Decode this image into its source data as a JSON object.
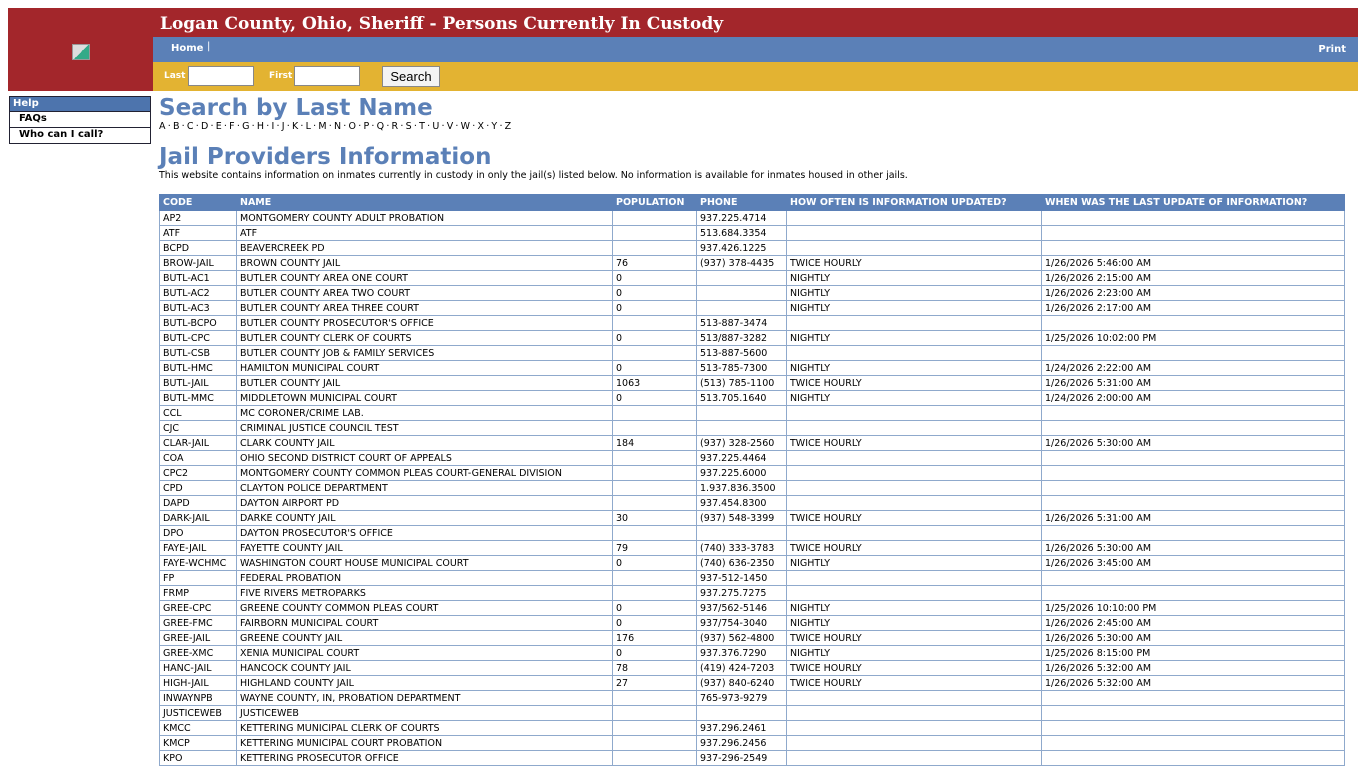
{
  "header": {
    "title": "Logan County, Ohio, Sheriff - Persons Currently In Custody"
  },
  "nav": {
    "home": "Home",
    "separator": "|",
    "print": "Print"
  },
  "search": {
    "last_label": "Last",
    "first_label": "First",
    "last_value": "",
    "first_value": "",
    "button": "Search"
  },
  "sidebar": {
    "heading": "Help",
    "items": [
      "FAQs",
      "Who can I call?"
    ]
  },
  "main": {
    "search_title": "Search by Last Name",
    "letters": [
      "A",
      "B",
      "C",
      "D",
      "E",
      "F",
      "G",
      "H",
      "I",
      "J",
      "K",
      "L",
      "M",
      "N",
      "O",
      "P",
      "Q",
      "R",
      "S",
      "T",
      "U",
      "V",
      "W",
      "X",
      "Y",
      "Z"
    ],
    "providers_title": "Jail Providers Information",
    "description": "This website contains information on inmates currently in custody in only the jail(s) listed below. No information is available for inmates housed in other jails."
  },
  "table": {
    "columns": [
      "CODE",
      "NAME",
      "POPULATION",
      "PHONE",
      "HOW OFTEN IS INFORMATION UPDATED?",
      "WHEN WAS THE LAST UPDATE OF INFORMATION?"
    ],
    "rows": [
      [
        "AP2",
        "MONTGOMERY COUNTY ADULT PROBATION",
        "",
        "937.225.4714",
        "",
        ""
      ],
      [
        "ATF",
        "ATF",
        "",
        "513.684.3354",
        "",
        ""
      ],
      [
        "BCPD",
        "BEAVERCREEK PD",
        "",
        "937.426.1225",
        "",
        ""
      ],
      [
        "BROW-JAIL",
        "BROWN COUNTY JAIL",
        "76",
        "(937) 378-4435",
        "TWICE HOURLY",
        "1/26/2026 5:46:00 AM"
      ],
      [
        "BUTL-AC1",
        "BUTLER COUNTY AREA ONE COURT",
        "0",
        "",
        "NIGHTLY",
        "1/26/2026 2:15:00 AM"
      ],
      [
        "BUTL-AC2",
        "BUTLER COUNTY AREA TWO COURT",
        "0",
        "",
        "NIGHTLY",
        "1/26/2026 2:23:00 AM"
      ],
      [
        "BUTL-AC3",
        "BUTLER COUNTY AREA THREE COURT",
        "0",
        "",
        "NIGHTLY",
        "1/26/2026 2:17:00 AM"
      ],
      [
        "BUTL-BCPO",
        "BUTLER COUNTY PROSECUTOR'S OFFICE",
        "",
        "513-887-3474",
        "",
        ""
      ],
      [
        "BUTL-CPC",
        "BUTLER COUNTY CLERK OF COURTS",
        "0",
        "513/887-3282",
        "NIGHTLY",
        "1/25/2026 10:02:00 PM"
      ],
      [
        "BUTL-CSB",
        "BUTLER COUNTY JOB & FAMILY SERVICES",
        "",
        "513-887-5600",
        "",
        ""
      ],
      [
        "BUTL-HMC",
        "HAMILTON MUNICIPAL COURT",
        "0",
        "513-785-7300",
        "NIGHTLY",
        "1/24/2026 2:22:00 AM"
      ],
      [
        "BUTL-JAIL",
        "BUTLER COUNTY JAIL",
        "1063",
        "(513) 785-1100",
        "TWICE HOURLY",
        "1/26/2026 5:31:00 AM"
      ],
      [
        "BUTL-MMC",
        "MIDDLETOWN MUNICIPAL COURT",
        "0",
        "513.705.1640",
        "NIGHTLY",
        "1/24/2026 2:00:00 AM"
      ],
      [
        "CCL",
        "MC CORONER/CRIME LAB.",
        "",
        "",
        "",
        ""
      ],
      [
        "CJC",
        "CRIMINAL JUSTICE COUNCIL TEST",
        "",
        "",
        "",
        ""
      ],
      [
        "CLAR-JAIL",
        "CLARK COUNTY JAIL",
        "184",
        "(937) 328-2560",
        "TWICE HOURLY",
        "1/26/2026 5:30:00 AM"
      ],
      [
        "COA",
        "OHIO SECOND DISTRICT COURT OF APPEALS",
        "",
        "937.225.4464",
        "",
        ""
      ],
      [
        "CPC2",
        "MONTGOMERY COUNTY COMMON PLEAS COURT-GENERAL DIVISION",
        "",
        "937.225.6000",
        "",
        ""
      ],
      [
        "CPD",
        "CLAYTON POLICE DEPARTMENT",
        "",
        "1.937.836.3500",
        "",
        ""
      ],
      [
        "DAPD",
        "DAYTON AIRPORT PD",
        "",
        "937.454.8300",
        "",
        ""
      ],
      [
        "DARK-JAIL",
        "DARKE COUNTY JAIL",
        "30",
        "(937) 548-3399",
        "TWICE HOURLY",
        "1/26/2026 5:31:00 AM"
      ],
      [
        "DPO",
        "DAYTON PROSECUTOR'S OFFICE",
        "",
        "",
        "",
        ""
      ],
      [
        "FAYE-JAIL",
        "FAYETTE COUNTY JAIL",
        "79",
        "(740) 333-3783",
        "TWICE HOURLY",
        "1/26/2026 5:30:00 AM"
      ],
      [
        "FAYE-WCHMC",
        "WASHINGTON COURT HOUSE MUNICIPAL COURT",
        "0",
        "(740) 636-2350",
        "NIGHTLY",
        "1/26/2026 3:45:00 AM"
      ],
      [
        "FP",
        "FEDERAL PROBATION",
        "",
        "937-512-1450",
        "",
        ""
      ],
      [
        "FRMP",
        "FIVE RIVERS METROPARKS",
        "",
        "937.275.7275",
        "",
        ""
      ],
      [
        "GREE-CPC",
        "GREENE COUNTY COMMON PLEAS COURT",
        "0",
        "937/562-5146",
        "NIGHTLY",
        "1/25/2026 10:10:00 PM"
      ],
      [
        "GREE-FMC",
        "FAIRBORN MUNICIPAL COURT",
        "0",
        "937/754-3040",
        "NIGHTLY",
        "1/26/2026 2:45:00 AM"
      ],
      [
        "GREE-JAIL",
        "GREENE COUNTY JAIL",
        "176",
        "(937) 562-4800",
        "TWICE HOURLY",
        "1/26/2026 5:30:00 AM"
      ],
      [
        "GREE-XMC",
        "XENIA MUNICIPAL COURT",
        "0",
        "937.376.7290",
        "NIGHTLY",
        "1/25/2026 8:15:00 PM"
      ],
      [
        "HANC-JAIL",
        "HANCOCK COUNTY JAIL",
        "78",
        "(419) 424-7203",
        "TWICE HOURLY",
        "1/26/2026 5:32:00 AM"
      ],
      [
        "HIGH-JAIL",
        "HIGHLAND COUNTY JAIL",
        "27",
        "(937) 840-6240",
        "TWICE HOURLY",
        "1/26/2026 5:32:00 AM"
      ],
      [
        "INWAYNPB",
        "WAYNE COUNTY, IN, PROBATION DEPARTMENT",
        "",
        "765-973-9279",
        "",
        ""
      ],
      [
        "JUSTICEWEB",
        "JUSTICEWEB",
        "",
        "",
        "",
        ""
      ],
      [
        "KMCC",
        "KETTERING MUNICIPAL CLERK OF COURTS",
        "",
        "937.296.2461",
        "",
        ""
      ],
      [
        "KMCP",
        "KETTERING MUNICIPAL COURT PROBATION",
        "",
        "937.296.2456",
        "",
        ""
      ],
      [
        "KPO",
        "KETTERING PROSECUTOR OFFICE",
        "",
        "937-296-2549",
        "",
        ""
      ]
    ]
  },
  "colors": {
    "header_red": "#a3262b",
    "nav_blue": "#5b80b7",
    "search_yellow": "#e3b332"
  }
}
